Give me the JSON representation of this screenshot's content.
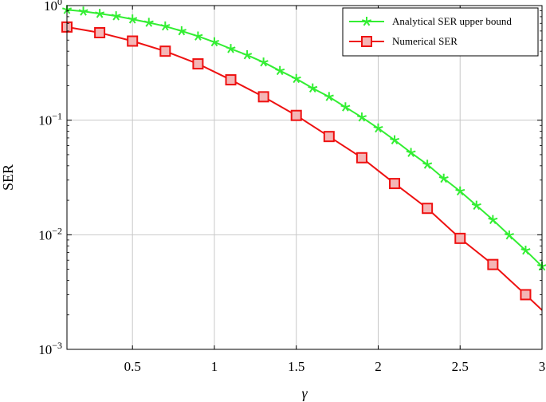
{
  "chart_data": {
    "type": "line",
    "title": "",
    "xlabel": "γ",
    "ylabel": "SER",
    "xlim": [
      0.1,
      3.0
    ],
    "ylim": [
      0.001,
      1
    ],
    "yscale": "log",
    "grid": true,
    "legend_position": "top-right",
    "x_ticks": [
      {
        "value": 0.5,
        "label": "0.5"
      },
      {
        "value": 1,
        "label": "1"
      },
      {
        "value": 1.5,
        "label": "1.5"
      },
      {
        "value": 2,
        "label": "2"
      },
      {
        "value": 2.5,
        "label": "2.5"
      },
      {
        "value": 3,
        "label": "3"
      }
    ],
    "y_ticks": [
      {
        "value": 1,
        "base": "10",
        "exp": "0"
      },
      {
        "value": 0.1,
        "base": "10",
        "exp": "−1"
      },
      {
        "value": 0.01,
        "base": "10",
        "exp": "−2"
      },
      {
        "value": 0.001,
        "base": "10",
        "exp": "−3"
      }
    ],
    "series": [
      {
        "name": "Analytical SER upper bound",
        "color": "#33ee33",
        "marker": "star",
        "x": [
          0.1,
          0.2,
          0.3,
          0.4,
          0.5,
          0.6,
          0.7,
          0.8,
          0.9,
          1.0,
          1.1,
          1.2,
          1.3,
          1.4,
          1.5,
          1.6,
          1.7,
          1.8,
          1.9,
          2.0,
          2.1,
          2.2,
          2.3,
          2.4,
          2.5,
          2.6,
          2.7,
          2.8,
          2.9,
          3.0
        ],
        "y": [
          0.92,
          0.89,
          0.85,
          0.81,
          0.76,
          0.71,
          0.66,
          0.6,
          0.54,
          0.48,
          0.42,
          0.37,
          0.32,
          0.27,
          0.23,
          0.19,
          0.16,
          0.13,
          0.106,
          0.085,
          0.067,
          0.052,
          0.041,
          0.031,
          0.024,
          0.018,
          0.0135,
          0.0099,
          0.0073,
          0.0053
        ]
      },
      {
        "name": "Numerical SER",
        "color": "#ee1111",
        "marker": "square",
        "x": [
          0.1,
          0.3,
          0.5,
          0.7,
          0.9,
          1.1,
          1.3,
          1.5,
          1.7,
          1.9,
          2.1,
          2.3,
          2.5,
          2.7,
          2.9,
          3.0
        ],
        "y": [
          0.65,
          0.58,
          0.49,
          0.4,
          0.31,
          0.225,
          0.16,
          0.11,
          0.072,
          0.047,
          0.028,
          0.017,
          0.0093,
          0.0055,
          0.003,
          0.0022
        ],
        "marker_points": 15
      }
    ]
  }
}
